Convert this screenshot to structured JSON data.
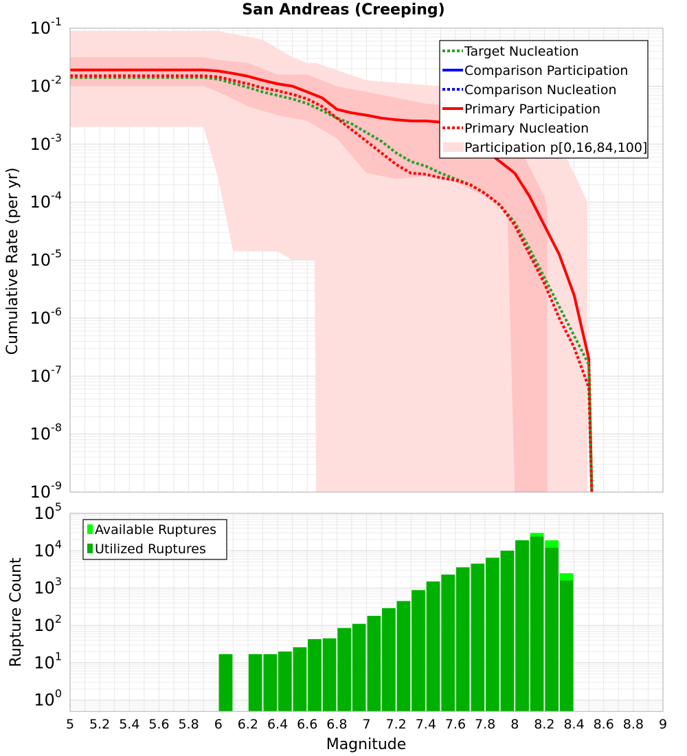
{
  "chart_data": [
    {
      "type": "line",
      "title": "San Andreas (Creeping)",
      "xlabel": "",
      "ylabel": "Cumulative Rate (per yr)",
      "xlim": [
        5,
        9
      ],
      "ylim_exp": [
        -9,
        -1
      ],
      "y_scale": "log",
      "y_ticks": [
        {
          "base": "10",
          "exp": "-1"
        },
        {
          "base": "10",
          "exp": "-2"
        },
        {
          "base": "10",
          "exp": "-3"
        },
        {
          "base": "10",
          "exp": "-4"
        },
        {
          "base": "10",
          "exp": "-5"
        },
        {
          "base": "10",
          "exp": "-6"
        },
        {
          "base": "10",
          "exp": "-7"
        },
        {
          "base": "10",
          "exp": "-8"
        },
        {
          "base": "10",
          "exp": "-9"
        }
      ],
      "grid": true,
      "legend_position": "top-right",
      "legend": [
        {
          "label": "Target Nucleation",
          "color": "#2ca02c",
          "style": "dotted"
        },
        {
          "label": "Comparison Participation",
          "color": "#0000ff",
          "style": "solid"
        },
        {
          "label": "Comparison Nucleation",
          "color": "#0000ff",
          "style": "dotted"
        },
        {
          "label": "Primary Participation",
          "color": "#ff0000",
          "style": "solid"
        },
        {
          "label": "Primary Nucleation",
          "color": "#ff0000",
          "style": "dotted"
        },
        {
          "label": "Participation p[0,16,84,100]",
          "color": "#ffdddd",
          "style": "band"
        }
      ],
      "bands": [
        {
          "name": "p0-p100",
          "color": "#ffdede",
          "x": [
            5.0,
            5.9,
            6.0,
            6.1,
            6.3,
            6.4,
            6.5,
            6.6,
            6.65,
            6.66,
            7.0,
            7.5,
            7.8,
            8.0,
            8.1,
            8.2,
            8.3,
            8.4,
            8.49
          ],
          "lower_exp": [
            -2.7,
            -2.7,
            -3.6,
            -4.85,
            -4.85,
            -4.85,
            -5.0,
            -5.0,
            -5.0,
            -9.0,
            -9.0,
            -9.0,
            -9.0,
            -9.0,
            -9.0,
            -9.0,
            -9.0,
            -9.0,
            -9.0
          ],
          "upper_exp": [
            -1.05,
            -1.05,
            -1.05,
            -1.1,
            -1.2,
            -1.35,
            -1.5,
            -1.6,
            -1.6,
            -1.6,
            -1.9,
            -2.0,
            -2.15,
            -2.3,
            -2.45,
            -2.6,
            -3.0,
            -3.5,
            -4.0
          ]
        },
        {
          "name": "p16-p84",
          "color": "#ffc4c4",
          "x": [
            5.0,
            5.9,
            6.0,
            6.2,
            6.4,
            6.6,
            6.8,
            7.0,
            7.2,
            7.4,
            7.6,
            7.8,
            7.95,
            8.0,
            8.1,
            8.2,
            8.22
          ],
          "lower_exp": [
            -2.0,
            -2.0,
            -2.1,
            -2.35,
            -2.5,
            -2.6,
            -2.9,
            -3.5,
            -3.6,
            -3.55,
            -3.65,
            -3.9,
            -4.2,
            -9.0,
            -9.0,
            -9.0,
            -9.0
          ],
          "upper_exp": [
            -1.5,
            -1.5,
            -1.55,
            -1.6,
            -1.8,
            -1.8,
            -2.0,
            -2.1,
            -2.2,
            -2.3,
            -2.35,
            -2.5,
            -2.7,
            -2.9,
            -3.4,
            -3.9,
            -4.1
          ]
        }
      ],
      "series": [
        {
          "name": "Primary Participation",
          "color": "#ff0000",
          "style": "solid",
          "x": [
            5.0,
            5.9,
            6.0,
            6.1,
            6.2,
            6.3,
            6.4,
            6.5,
            6.6,
            6.7,
            6.8,
            6.9,
            7.0,
            7.1,
            7.2,
            7.3,
            7.4,
            7.5,
            7.6,
            7.7,
            7.8,
            7.9,
            8.0,
            8.1,
            8.2,
            8.3,
            8.4,
            8.5,
            8.52
          ],
          "y_exp": [
            -1.72,
            -1.72,
            -1.74,
            -1.78,
            -1.83,
            -1.9,
            -1.96,
            -2.0,
            -2.1,
            -2.2,
            -2.4,
            -2.46,
            -2.5,
            -2.55,
            -2.58,
            -2.6,
            -2.6,
            -2.62,
            -2.7,
            -2.85,
            -3.1,
            -3.3,
            -3.5,
            -3.9,
            -4.4,
            -4.9,
            -5.6,
            -6.7,
            -9.0
          ]
        },
        {
          "name": "Target Nucleation",
          "color": "#2ca02c",
          "style": "dotted",
          "x": [
            5.0,
            5.9,
            6.0,
            6.1,
            6.2,
            6.3,
            6.4,
            6.5,
            6.6,
            6.7,
            6.8,
            6.9,
            7.0,
            7.1,
            7.2,
            7.3,
            7.4,
            7.5,
            7.6,
            7.7,
            7.8,
            7.9,
            8.0,
            8.1,
            8.2,
            8.3,
            8.4,
            8.5,
            8.52
          ],
          "y_exp": [
            -1.85,
            -1.85,
            -1.88,
            -1.95,
            -2.02,
            -2.1,
            -2.16,
            -2.22,
            -2.3,
            -2.42,
            -2.55,
            -2.65,
            -2.8,
            -2.95,
            -3.15,
            -3.3,
            -3.38,
            -3.5,
            -3.6,
            -3.7,
            -3.85,
            -4.05,
            -4.35,
            -4.8,
            -5.3,
            -5.8,
            -6.3,
            -6.8,
            -9.0
          ]
        },
        {
          "name": "Primary Nucleation",
          "color": "#ff0000",
          "style": "dotted",
          "x": [
            5.0,
            5.9,
            6.0,
            6.1,
            6.2,
            6.3,
            6.4,
            6.5,
            6.6,
            6.7,
            6.8,
            6.9,
            7.0,
            7.1,
            7.2,
            7.3,
            7.4,
            7.5,
            7.6,
            7.7,
            7.8,
            7.9,
            8.0,
            8.1,
            8.2,
            8.3,
            8.4,
            8.5,
            8.52
          ],
          "y_exp": [
            -1.82,
            -1.82,
            -1.84,
            -1.9,
            -1.96,
            -2.03,
            -2.08,
            -2.14,
            -2.22,
            -2.35,
            -2.55,
            -2.75,
            -2.95,
            -3.15,
            -3.35,
            -3.5,
            -3.52,
            -3.58,
            -3.62,
            -3.7,
            -3.85,
            -4.05,
            -4.4,
            -4.9,
            -5.4,
            -6.0,
            -6.5,
            -7.2,
            -9.0
          ]
        }
      ]
    },
    {
      "type": "bar",
      "xlabel": "Magnitude",
      "ylabel": "Rupture Count",
      "xlim": [
        5,
        9
      ],
      "ylim_exp": [
        -0.3,
        5
      ],
      "y_scale": "log",
      "x_ticks": [
        "5",
        "5.2",
        "5.4",
        "5.6",
        "5.8",
        "6",
        "6.2",
        "6.4",
        "6.6",
        "6.8",
        "7",
        "7.2",
        "7.4",
        "7.6",
        "7.8",
        "8",
        "8.2",
        "8.4",
        "8.6",
        "8.8",
        "9"
      ],
      "y_ticks": [
        {
          "base": "10",
          "exp": "0"
        },
        {
          "base": "10",
          "exp": "1"
        },
        {
          "base": "10",
          "exp": "2"
        },
        {
          "base": "10",
          "exp": "3"
        },
        {
          "base": "10",
          "exp": "4"
        },
        {
          "base": "10",
          "exp": "5"
        }
      ],
      "grid": true,
      "legend_position": "top-left",
      "legend": [
        {
          "label": "Available Ruptures",
          "color": "#00ff00"
        },
        {
          "label": "Utilized Ruptures",
          "color": "#00b000"
        }
      ],
      "bar_width": 0.1,
      "categories": [
        6.0,
        6.2,
        6.3,
        6.4,
        6.5,
        6.6,
        6.7,
        6.8,
        6.9,
        7.0,
        7.1,
        7.2,
        7.3,
        7.4,
        7.5,
        7.6,
        7.7,
        7.8,
        7.9,
        8.0,
        8.1,
        8.2,
        8.3
      ],
      "series": [
        {
          "name": "Available Ruptures",
          "color": "#00ff00",
          "values": [
            17,
            17,
            17,
            20,
            26,
            43,
            45,
            85,
            110,
            180,
            290,
            450,
            880,
            1500,
            2300,
            3600,
            4500,
            6500,
            10000,
            19000,
            30000,
            19000,
            2500
          ]
        },
        {
          "name": "Utilized Ruptures",
          "color": "#00b000",
          "values": [
            17,
            17,
            17,
            20,
            26,
            43,
            45,
            85,
            110,
            180,
            290,
            450,
            880,
            1500,
            2300,
            3600,
            4500,
            6500,
            10000,
            19000,
            24000,
            12000,
            1600
          ]
        }
      ]
    }
  ]
}
